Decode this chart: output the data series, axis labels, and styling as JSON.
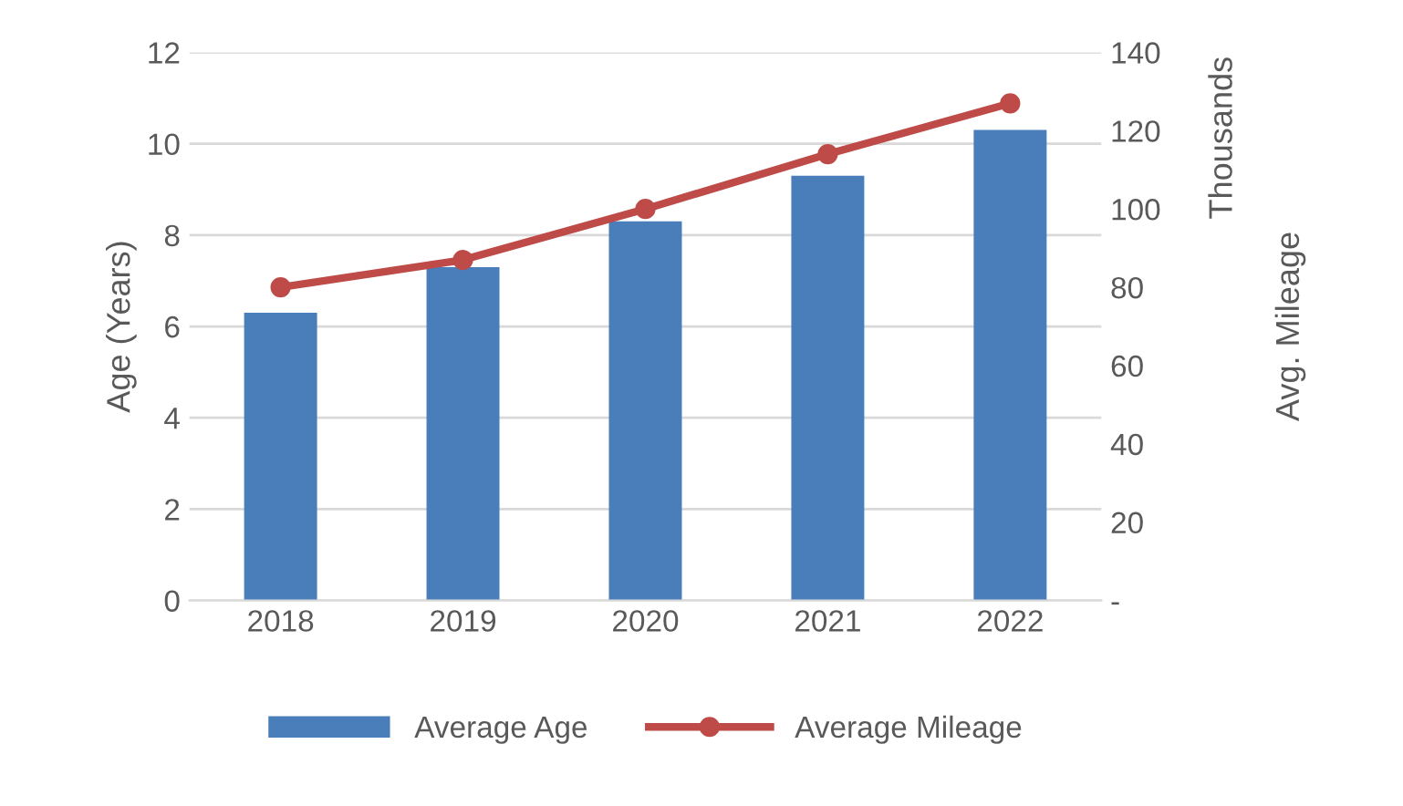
{
  "chart_data": {
    "type": "bar",
    "categories": [
      "2018",
      "2019",
      "2020",
      "2021",
      "2022"
    ],
    "series": [
      {
        "name": "Average Age",
        "color": "#4a7ebb",
        "values": [
          6.3,
          7.3,
          8.3,
          9.3,
          10.3
        ]
      },
      {
        "name": "Average Mileage",
        "type": "line",
        "axis": "y2",
        "color": "#be4b48",
        "marker": "circle",
        "values": [
          80,
          87,
          100,
          114,
          127
        ]
      }
    ],
    "ylabel": "Age (Years)",
    "y2label": "Avg. Mileage",
    "annotations": [
      "Thousands"
    ],
    "ylim": [
      0,
      12
    ],
    "yticks": [
      0,
      2,
      4,
      6,
      8,
      10,
      12
    ],
    "y2lim": [
      0,
      140
    ],
    "y2ticks": [
      {
        "value": 0,
        "label": "-"
      },
      20,
      40,
      60,
      80,
      100,
      120,
      140
    ],
    "grid": "y",
    "legend": "bottom"
  }
}
